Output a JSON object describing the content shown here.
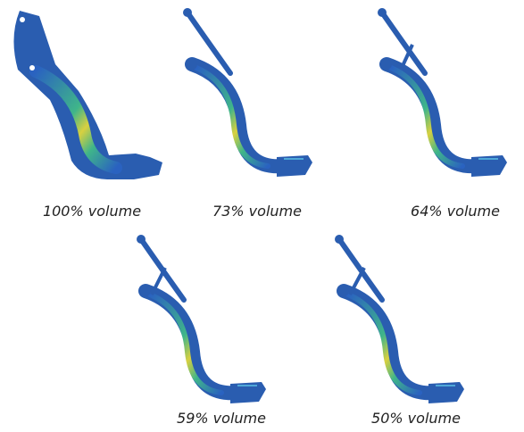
{
  "panels": [
    {
      "caption": "100% volume"
    },
    {
      "caption": "73% volume"
    },
    {
      "caption": "64% volume"
    },
    {
      "caption": "59% volume"
    },
    {
      "caption": "50% volume"
    }
  ]
}
